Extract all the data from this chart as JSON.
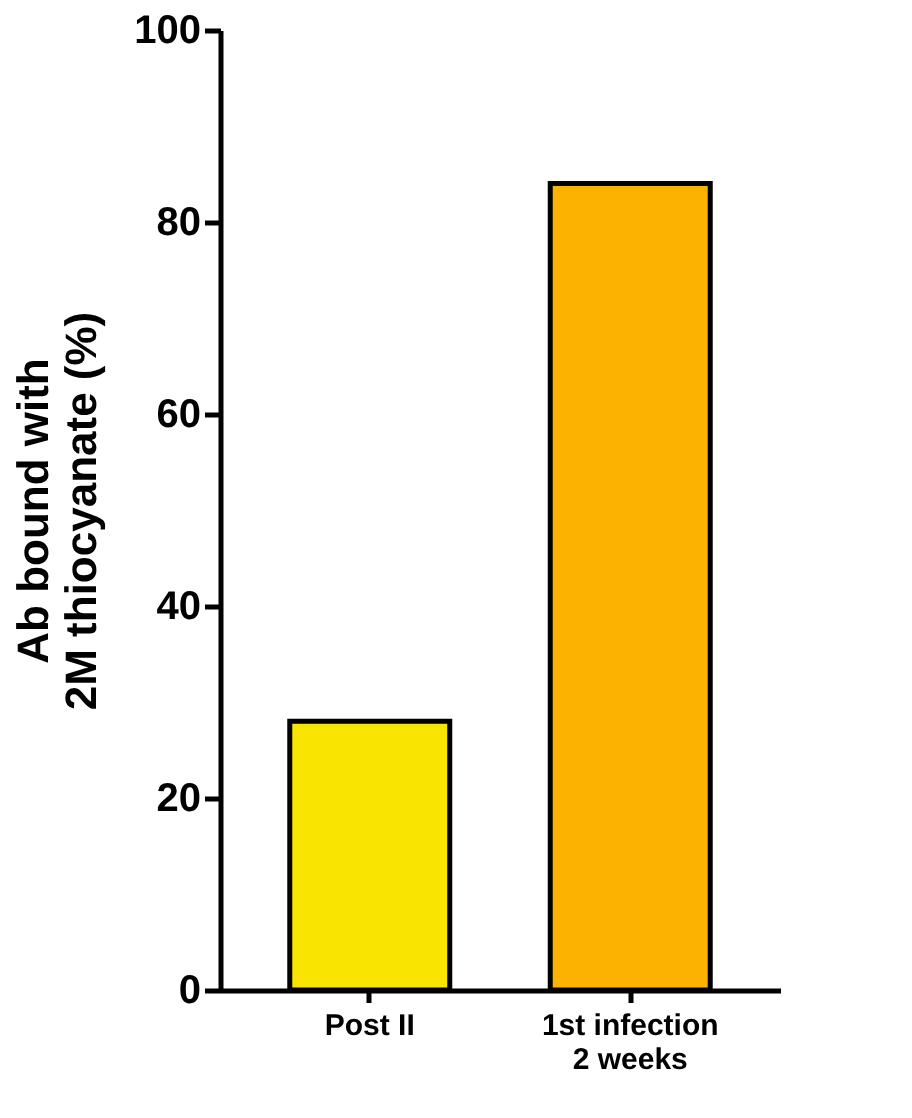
{
  "chart_data": {
    "type": "bar",
    "categories": [
      "Post II",
      "1st infection\n2 weeks"
    ],
    "values": [
      28,
      84
    ],
    "colors": [
      "#f8e400",
      "#fbb200"
    ],
    "ylabel": "Ab bound with\n2M thiocyanate (%)",
    "ylim": [
      0,
      100
    ],
    "yticks": [
      0,
      20,
      40,
      60,
      80,
      100
    ],
    "grid": false
  }
}
